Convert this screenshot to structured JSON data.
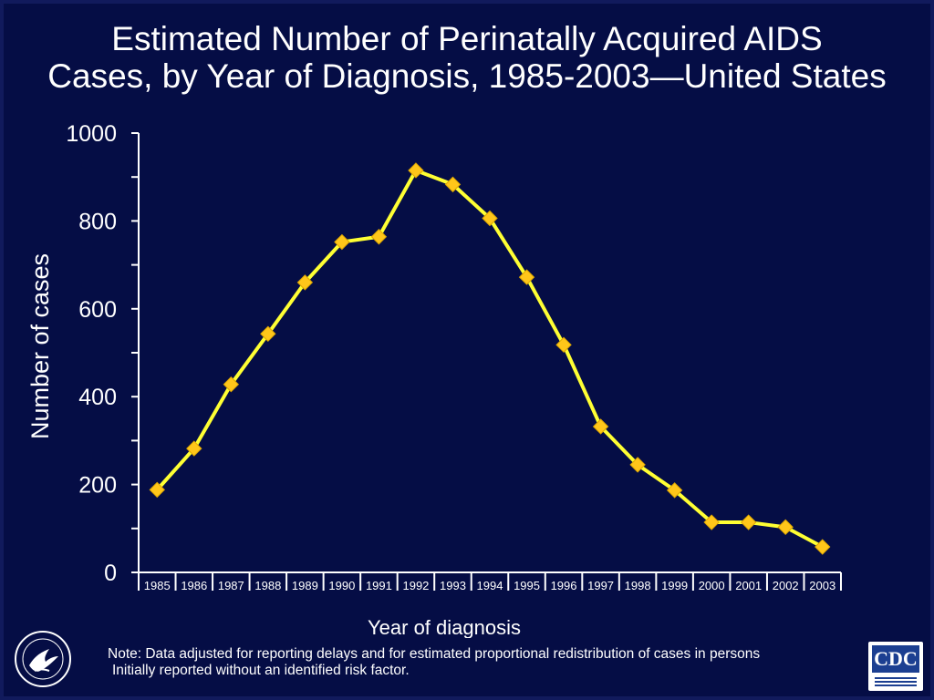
{
  "slide": {
    "title_line1": "Estimated Number of Perinatally Acquired AIDS",
    "title_line2": "Cases, by Year of  Diagnosis, 1985-2003—United States",
    "note_line1": "Note: Data adjusted for reporting delays and for estimated proportional redistribution of cases in persons",
    "note_line2": "Initially reported without an identified risk factor.",
    "hhs_seal_icon": "hhs-eagle-seal",
    "cdc_logo_icon": "cdc-logo",
    "background_color": "#050d45"
  },
  "chart_data": {
    "type": "line",
    "title": "Estimated Number of Perinatally Acquired AIDS Cases, by Year of  Diagnosis, 1985-2003—United States",
    "xlabel": "Year of diagnosis",
    "ylabel": "Number of cases",
    "categories": [
      "1985",
      "1986",
      "1987",
      "1988",
      "1989",
      "1990",
      "1991",
      "1992",
      "1993",
      "1994",
      "1995",
      "1996",
      "1997",
      "1998",
      "1999",
      "2000",
      "2001",
      "2002",
      "2003"
    ],
    "series": [
      {
        "values": [
          188,
          282,
          428,
          543,
          660,
          752,
          764,
          915,
          883,
          806,
          672,
          518,
          332,
          245,
          187,
          114,
          114,
          103,
          58
        ],
        "color": "#ffff33",
        "marker": "diamond",
        "marker_color": "#ffc61a"
      }
    ],
    "ylim": [
      0,
      1000
    ],
    "yticks": [
      0,
      200,
      400,
      600,
      800,
      1000
    ],
    "grid": false,
    "legend": "none"
  }
}
